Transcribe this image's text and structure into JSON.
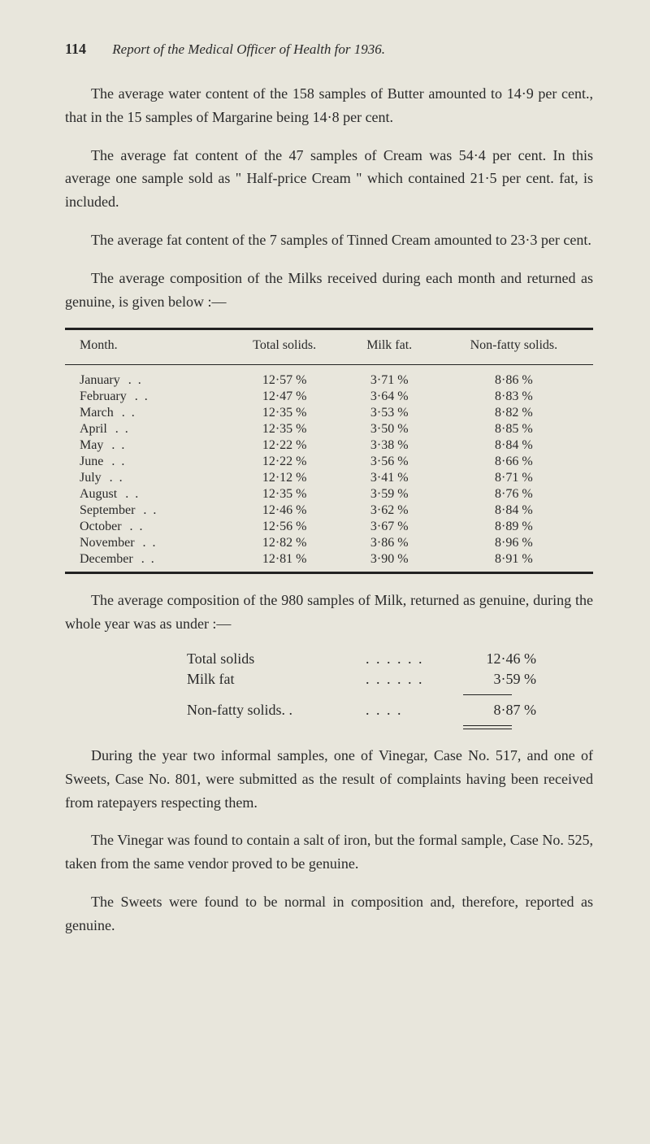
{
  "page_number": "114",
  "header_title": "Report of the Medical Officer of Health for 1936.",
  "paragraphs": {
    "p1": "The average water content of the 158 samples of Butter amounted to 14·9 per cent., that in the 15 samples of Margarine being 14·8 per cent.",
    "p2": "The average fat content of the 47 samples of Cream was 54·4 per cent. In this average one sample sold as \" Half-price Cream \" which contained 21·5 per cent. fat, is included.",
    "p3": "The average fat content of the 7 samples of Tinned Cream amounted to 23·3 per cent.",
    "p4": "The average composition of the Milks received during each month and returned as genuine, is given below :—",
    "p5": "The average composition of the 980 samples of Milk, returned as genuine, during the whole year was as under :—",
    "p6": "During the year two informal samples, one of Vinegar, Case No. 517, and one of Sweets, Case No. 801, were submitted as the result of complaints having been received from ratepayers respecting them.",
    "p7": "The Vinegar was found to contain a salt of iron, but the formal sample, Case No. 525, taken from the same vendor proved to be genuine.",
    "p8": "The Sweets were found to be normal in composition and, therefore, reported as genuine."
  },
  "table": {
    "columns": [
      "Month.",
      "Total solids.",
      "Milk fat.",
      "Non-fatty solids."
    ],
    "rows": [
      [
        "January",
        "12·57 %",
        "3·71 %",
        "8·86 %"
      ],
      [
        "February",
        "12·47 %",
        "3·64 %",
        "8·83 %"
      ],
      [
        "March",
        "12·35 %",
        "3·53 %",
        "8·82 %"
      ],
      [
        "April",
        "12·35 %",
        "3·50 %",
        "8·85 %"
      ],
      [
        "May",
        "12·22 %",
        "3·38 %",
        "8·84 %"
      ],
      [
        "June",
        "12·22 %",
        "3·56 %",
        "8·66 %"
      ],
      [
        "July",
        "12·12 %",
        "3·41 %",
        "8·71 %"
      ],
      [
        "August",
        "12·35 %",
        "3·59 %",
        "8·76 %"
      ],
      [
        "September",
        "12·46 %",
        "3·62 %",
        "8·84 %"
      ],
      [
        "October",
        "12·56 %",
        "3·67 %",
        "8·89 %"
      ],
      [
        "November",
        "12·82 %",
        "3·86 %",
        "8·96 %"
      ],
      [
        "December",
        "12·81 %",
        "3·90 %",
        "8·91 %"
      ]
    ]
  },
  "summary": {
    "rows": [
      {
        "label": "Total solids",
        "value": "12·46 %"
      },
      {
        "label": "Milk fat",
        "value": "3·59 %"
      }
    ],
    "nonfatty": {
      "label": "Non-fatty solids. .",
      "value": "8·87 %"
    }
  },
  "dots_short": ". .",
  "dots_med": ". .   . .",
  "dots_long": ". .   . .   . ."
}
